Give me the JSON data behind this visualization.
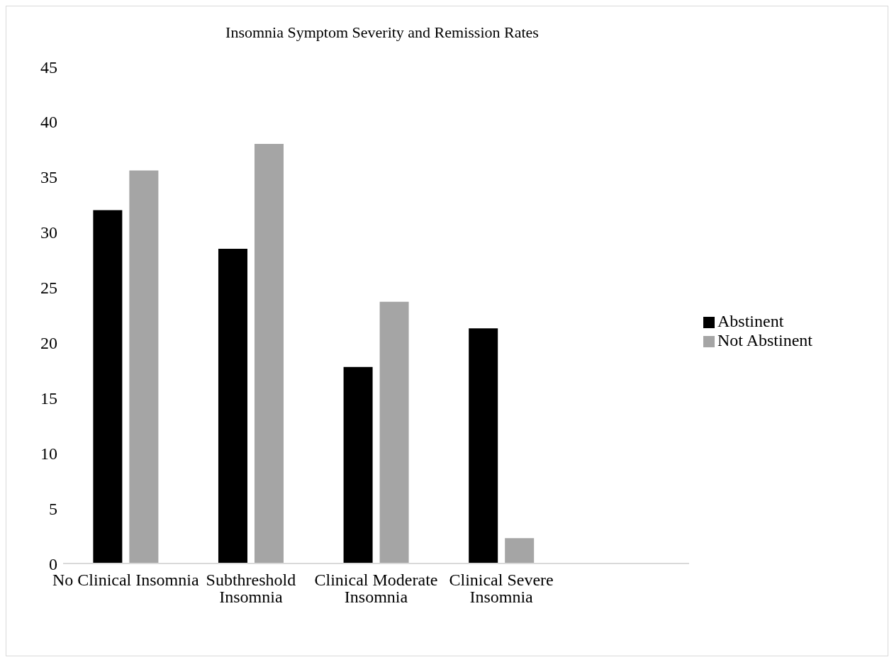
{
  "chart_data": {
    "type": "bar",
    "title": "Insomnia Symptom Severity and Remission Rates",
    "categories": [
      "No Clinical Insomnia",
      "Subthreshold Insomnia",
      "Clinical Moderate Insomnia",
      "Clinical Severe Insomnia",
      null
    ],
    "series": [
      {
        "name": "Abstinent",
        "color": "#000000",
        "values": [
          32.0,
          28.5,
          17.8,
          21.3,
          null
        ]
      },
      {
        "name": "Not Abstinent",
        "color": "#a5a5a5",
        "values": [
          35.6,
          38.0,
          23.7,
          2.3,
          null
        ]
      }
    ],
    "ylim": [
      0,
      45
    ],
    "yticks": [
      0,
      5,
      10,
      15,
      20,
      25,
      30,
      35,
      40,
      45
    ],
    "grid": false,
    "legend": "right"
  }
}
